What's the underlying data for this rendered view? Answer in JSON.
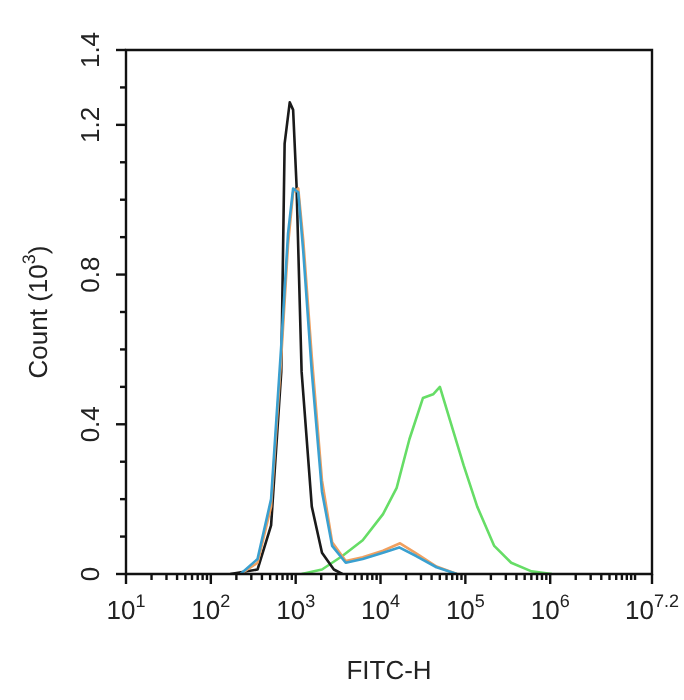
{
  "chart_data": {
    "type": "line",
    "xlabel": "FITC-H",
    "ylabel": "Count (10$^{3}$)",
    "log": "x",
    "legend": false,
    "grid": false,
    "marker": "none",
    "line_style": "solid",
    "xlim": [
      10,
      15848932
    ],
    "ylim": [
      0,
      1.4
    ],
    "xticks": [
      {
        "value": 10,
        "label": "10$^{1}$"
      },
      {
        "value": 20,
        "label": null
      },
      {
        "value": 30,
        "label": null
      },
      {
        "value": 40,
        "label": null
      },
      {
        "value": 50,
        "label": null
      },
      {
        "value": 60,
        "label": null
      },
      {
        "value": 70,
        "label": null
      },
      {
        "value": 80,
        "label": null
      },
      {
        "value": 90,
        "label": null
      },
      {
        "value": 100,
        "label": "10$^{2}$"
      },
      {
        "value": 200,
        "label": null
      },
      {
        "value": 300,
        "label": null
      },
      {
        "value": 400,
        "label": null
      },
      {
        "value": 500,
        "label": null
      },
      {
        "value": 600,
        "label": null
      },
      {
        "value": 700,
        "label": null
      },
      {
        "value": 800,
        "label": null
      },
      {
        "value": 900,
        "label": null
      },
      {
        "value": 1000,
        "label": "10$^{3}$"
      },
      {
        "value": 2000,
        "label": null
      },
      {
        "value": 3000,
        "label": null
      },
      {
        "value": 4000,
        "label": null
      },
      {
        "value": 5000,
        "label": null
      },
      {
        "value": 6000,
        "label": null
      },
      {
        "value": 7000,
        "label": null
      },
      {
        "value": 8000,
        "label": null
      },
      {
        "value": 9000,
        "label": null
      },
      {
        "value": 10000,
        "label": "10$^{4}$"
      },
      {
        "value": 20000,
        "label": null
      },
      {
        "value": 30000,
        "label": null
      },
      {
        "value": 40000,
        "label": null
      },
      {
        "value": 50000,
        "label": null
      },
      {
        "value": 60000,
        "label": null
      },
      {
        "value": 70000,
        "label": null
      },
      {
        "value": 80000,
        "label": null
      },
      {
        "value": 90000,
        "label": null
      },
      {
        "value": 100000,
        "label": "10$^{5}$"
      },
      {
        "value": 200000,
        "label": null
      },
      {
        "value": 300000,
        "label": null
      },
      {
        "value": 400000,
        "label": null
      },
      {
        "value": 500000,
        "label": null
      },
      {
        "value": 600000,
        "label": null
      },
      {
        "value": 700000,
        "label": null
      },
      {
        "value": 800000,
        "label": null
      },
      {
        "value": 900000,
        "label": null
      },
      {
        "value": 1000000,
        "label": "10$^{6}$"
      },
      {
        "value": 2000000,
        "label": null
      },
      {
        "value": 3000000,
        "label": null
      },
      {
        "value": 4000000,
        "label": null
      },
      {
        "value": 5000000,
        "label": null
      },
      {
        "value": 6000000,
        "label": null
      },
      {
        "value": 7000000,
        "label": null
      },
      {
        "value": 8000000,
        "label": null
      },
      {
        "value": 9000000,
        "label": null
      },
      {
        "value": 10000000,
        "label": null
      },
      {
        "value": 15848932,
        "label": "10$^{7.2}$"
      }
    ],
    "yticks": [
      0,
      {
        "value": 0.1,
        "label": null
      },
      {
        "value": 0.2,
        "label": null
      },
      {
        "value": 0.3,
        "label": null
      },
      0.4,
      {
        "value": 0.5,
        "label": null
      },
      {
        "value": 0.6,
        "label": null
      },
      {
        "value": 0.7,
        "label": null
      },
      0.8,
      {
        "value": 0.9,
        "label": null
      },
      {
        "value": 1.0,
        "label": null
      },
      {
        "value": 1.1,
        "label": null
      },
      1.2,
      {
        "value": 1.3,
        "label": null
      },
      1.4
    ],
    "series": [
      {
        "color": "#66dd66",
        "x": [
          1175,
          2042,
          3548,
          6166,
          10700,
          15500,
          21900,
          31600,
          41700,
          50100,
          66100,
          95500,
          138000,
          219000,
          347000,
          603000,
          1047000
        ],
        "values": [
          0,
          0.012,
          0.048,
          0.09,
          0.16,
          0.23,
          0.36,
          0.47,
          0.48,
          0.5,
          0.41,
          0.29,
          0.18,
          0.075,
          0.03,
          0.007,
          0
        ]
      },
      {
        "color": "#1a1a1a",
        "x": [
          170,
          355,
          513,
          676,
          741,
          851,
          933,
          1023,
          1175,
          1549,
          2042,
          2818,
          3548
        ],
        "values": [
          0,
          0.012,
          0.13,
          0.54,
          1.15,
          1.26,
          1.24,
          1.04,
          0.54,
          0.18,
          0.057,
          0.012,
          0
        ]
      },
      {
        "color": "#f0a060",
        "x": [
          224,
          355,
          513,
          676,
          813,
          933,
          1072,
          1230,
          1549,
          2042,
          2692,
          3890,
          6166,
          10700,
          17000,
          26300,
          45700,
          79400
        ],
        "values": [
          0,
          0.03,
          0.18,
          0.58,
          0.88,
          1.02,
          1.03,
          0.89,
          0.58,
          0.25,
          0.085,
          0.035,
          0.045,
          0.062,
          0.082,
          0.055,
          0.02,
          0
        ]
      },
      {
        "color": "#3aa0d0",
        "x": [
          224,
          355,
          513,
          676,
          813,
          933,
          1072,
          1230,
          1549,
          2042,
          2692,
          3890,
          6166,
          10700,
          16600,
          26300,
          45700,
          79400
        ],
        "values": [
          0,
          0.04,
          0.2,
          0.61,
          0.91,
          1.03,
          1.02,
          0.86,
          0.54,
          0.22,
          0.075,
          0.03,
          0.04,
          0.057,
          0.071,
          0.048,
          0.018,
          0
        ]
      }
    ]
  }
}
